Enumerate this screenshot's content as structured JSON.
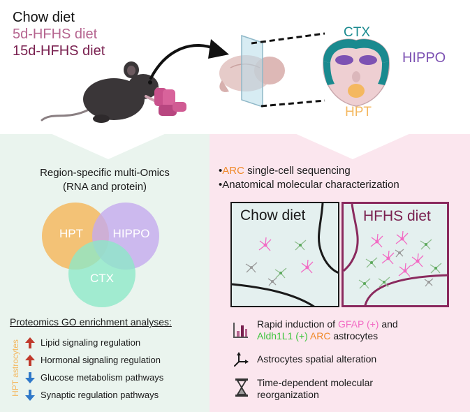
{
  "diets": {
    "chow": "Chow diet",
    "hfhs5": "5d-HFHS diet",
    "hfhs15": "15d-HFHS diet"
  },
  "brain_labels": {
    "ctx": "CTX",
    "hippo": "HIPPO",
    "hpt": "HPT"
  },
  "left": {
    "title_line1": "Region-specific multi-Omics",
    "title_line2": "(RNA and protein)",
    "venn": {
      "hpt": "HPT",
      "hippo": "HIPPO",
      "ctx": "CTX"
    },
    "go_title": "Proteomics GO enrichment analyses:",
    "side_label": "HPT astrocytes",
    "items": [
      {
        "label": "Lipid signaling regulation",
        "direction": "up"
      },
      {
        "label": "Hormonal signaling regulation",
        "direction": "up"
      },
      {
        "label": "Glucose metabolism pathways",
        "direction": "down"
      },
      {
        "label": "Synaptic regulation pathways",
        "direction": "down"
      }
    ]
  },
  "right": {
    "bullet1_prefix": "•",
    "bullet1_highlight": "ARC",
    "bullet1_rest": " single-cell sequencing",
    "bullet2": "•Anatomical molecular characterization",
    "box_chow": "Chow diet",
    "box_hfhs": "HFHS diet",
    "finding1": {
      "t1": "Rapid induction of ",
      "gfap": "GFAP (+)",
      "t2": " and",
      "aldh": "Aldh1L1 (+)",
      "arc": "ARC",
      "t3": " astrocytes"
    },
    "finding2": "Astrocytes spatial alteration",
    "finding3_line1": "Time-dependent molecular",
    "finding3_line2": "reorganization"
  },
  "colors": {
    "chow": "#111111",
    "hfhs5": "#b5648f",
    "hfhs15": "#7a2150",
    "ctx": "#1a8a8f",
    "hippo": "#7d52b3",
    "hpt": "#f4b860",
    "arc": "#f08a2a",
    "gfap": "#f26bc4",
    "aldh": "#3cc43c",
    "up_arrow": "#c0392b",
    "down_arrow": "#2f78c9",
    "hfhs_box": "#8a2a5e"
  },
  "icons": {
    "mouse": "mouse-illustration",
    "brain": "brain-illustration",
    "coronal": "coronal-brain-section",
    "finding1": "bar-chart-icon",
    "finding2": "axes-icon",
    "finding3": "hourglass-icon"
  }
}
